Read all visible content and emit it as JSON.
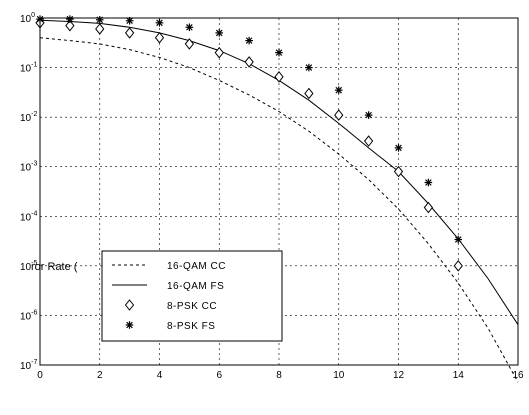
{
  "chart_data": {
    "type": "line",
    "title": "",
    "xlabel": "",
    "ylabel": "ror Rate (",
    "xlim": [
      0,
      16
    ],
    "ylim_log10": [
      -7,
      0
    ],
    "y_scale": "log",
    "grid": true,
    "x_ticks": [
      "0",
      "2",
      "4",
      "6",
      "8",
      "10",
      "12",
      "14",
      "16"
    ],
    "y_ticks": [
      {
        "base": "10",
        "exp": "0"
      },
      {
        "base": "10",
        "exp": "-1"
      },
      {
        "base": "10",
        "exp": "-2"
      },
      {
        "base": "10",
        "exp": "-3"
      },
      {
        "base": "10",
        "exp": "-4"
      },
      {
        "base": "10",
        "exp": "-5"
      },
      {
        "base": "10",
        "exp": "-6"
      },
      {
        "base": "10",
        "exp": "-7"
      }
    ],
    "legend_placement": "lower-left",
    "series": [
      {
        "name": "16-QAM CC",
        "style": "dashed",
        "x": [
          0,
          1,
          2,
          3,
          4,
          5,
          6,
          7,
          8,
          9,
          10,
          11,
          12,
          13,
          14,
          15,
          16
        ],
        "y": [
          0.4,
          0.35,
          0.3,
          0.23,
          0.16,
          0.1,
          0.055,
          0.028,
          0.013,
          0.0052,
          0.0018,
          0.00055,
          0.00014,
          2.8e-05,
          4.5e-06,
          5.5e-07,
          4.5e-08
        ]
      },
      {
        "name": "16-QAM FS",
        "style": "solid",
        "x": [
          0,
          1,
          2,
          3,
          4,
          5,
          6,
          7,
          8,
          9,
          10,
          11,
          12,
          13,
          14,
          15,
          16
        ],
        "y": [
          0.9,
          0.85,
          0.78,
          0.65,
          0.5,
          0.35,
          0.22,
          0.12,
          0.055,
          0.022,
          0.0075,
          0.0024,
          0.0008,
          0.00018,
          3.5e-05,
          5.5e-06,
          6.5e-07
        ]
      },
      {
        "name": "8-PSK CC",
        "style": "diamond",
        "x": [
          0,
          1,
          2,
          3,
          4,
          5,
          6,
          7,
          8,
          9,
          10,
          11,
          12,
          13,
          14
        ],
        "y": [
          0.8,
          0.7,
          0.6,
          0.5,
          0.4,
          0.3,
          0.2,
          0.13,
          0.065,
          0.03,
          0.011,
          0.0033,
          0.0008,
          0.00015,
          1e-05
        ]
      },
      {
        "name": "8-PSK FS",
        "style": "star",
        "x": [
          0,
          1,
          2,
          3,
          4,
          5,
          6,
          7,
          8,
          9,
          10,
          11,
          12,
          13,
          14
        ],
        "y": [
          0.95,
          0.95,
          0.92,
          0.88,
          0.8,
          0.65,
          0.5,
          0.35,
          0.2,
          0.1,
          0.035,
          0.011,
          0.0024,
          0.00048,
          3.4e-05
        ]
      }
    ]
  }
}
